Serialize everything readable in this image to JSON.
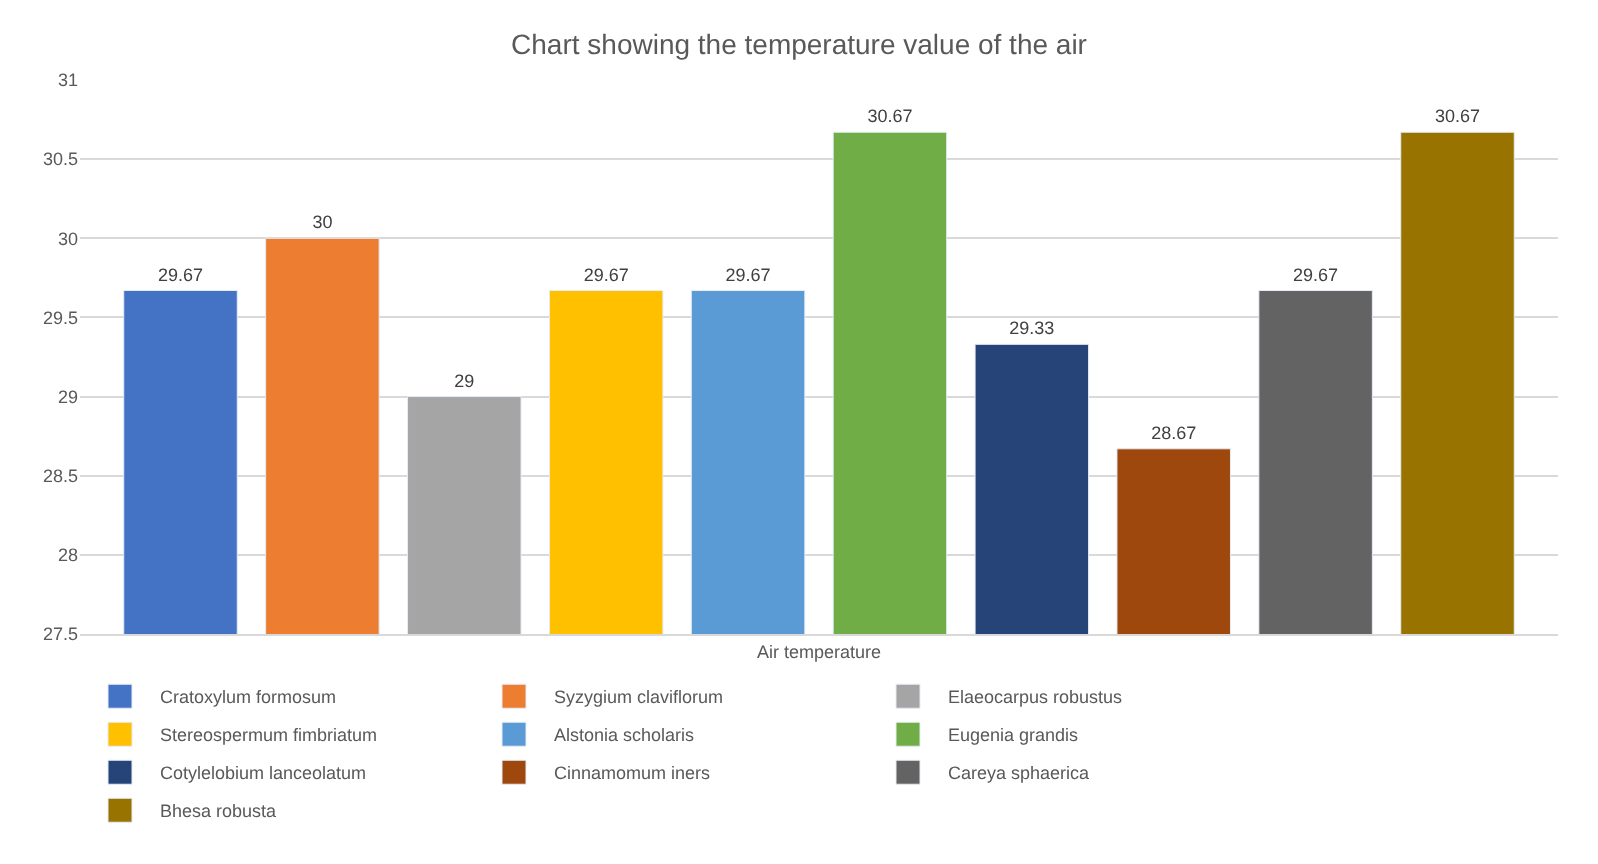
{
  "chart_data": {
    "type": "bar",
    "title": "Chart showing the temperature value of the air",
    "categories": [
      "Air temperature"
    ],
    "series": [
      {
        "name": "Cratoxylum formosum",
        "color": "#4472c4",
        "values": [
          29.67
        ]
      },
      {
        "name": "Syzygium claviflorum",
        "color": "#ed7d31",
        "values": [
          30
        ]
      },
      {
        "name": "Elaeocarpus robustus",
        "color": "#a5a5a5",
        "values": [
          29
        ]
      },
      {
        "name": "Stereospermum fimbriatum",
        "color": "#ffc000",
        "values": [
          29.67
        ]
      },
      {
        "name": "Alstonia scholaris",
        "color": "#5b9bd5",
        "values": [
          29.67
        ]
      },
      {
        "name": "Eugenia grandis",
        "color": "#70ad47",
        "values": [
          30.67
        ]
      },
      {
        "name": "Cotylelobium lanceolatum",
        "color": "#264478",
        "values": [
          29.33
        ]
      },
      {
        "name": "Cinnamomum iners",
        "color": "#9e480e",
        "values": [
          28.67
        ]
      },
      {
        "name": "Careya sphaerica",
        "color": "#636363",
        "values": [
          29.67
        ]
      },
      {
        "name": "Bhesa robusta",
        "color": "#997300",
        "values": [
          30.67
        ]
      }
    ],
    "ylim": [
      27.5,
      31
    ],
    "yticks": [
      27.5,
      28,
      28.5,
      29,
      29.5,
      30,
      30.5,
      31
    ],
    "grid": "y",
    "legend": "bottom",
    "data_labels": true
  }
}
